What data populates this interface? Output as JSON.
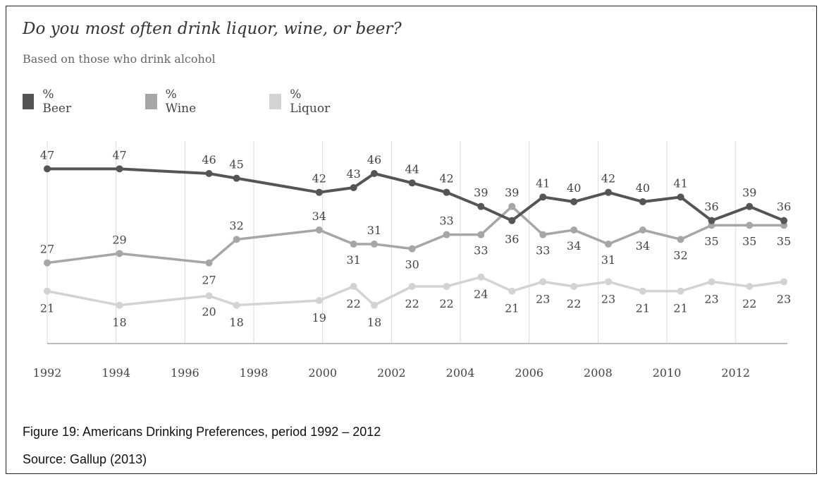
{
  "chart_data": {
    "type": "line",
    "title": "Do you most often drink liquor, wine, or beer?",
    "subtitle": "Based on those who drink alcohol",
    "x_tick_labels": [
      "1992",
      "1994",
      "1996",
      "1998",
      "2000",
      "2002",
      "2004",
      "2006",
      "2008",
      "2010",
      "2012"
    ],
    "xlim": [
      1992,
      2013.5
    ],
    "ylim": [
      10,
      52
    ],
    "grid": "vertical",
    "legend_position": "top-left",
    "x": [
      1992,
      1994.1,
      1996.7,
      1997.5,
      1999.9,
      2000.9,
      2001.5,
      2002.6,
      2003.6,
      2004.6,
      2005.5,
      2006.4,
      2007.3,
      2008.3,
      2009.3,
      2010.4,
      2011.3,
      2012.4,
      2013.4
    ],
    "series": [
      {
        "name": "% Beer",
        "color": "#555555",
        "values": [
          47,
          47,
          46,
          45,
          42,
          43,
          46,
          44,
          42,
          39,
          36,
          41,
          40,
          42,
          40,
          41,
          36,
          39,
          36
        ]
      },
      {
        "name": "% Wine",
        "color": "#a6a6a6",
        "values": [
          27,
          29,
          27,
          32,
          34,
          31,
          31,
          30,
          33,
          33,
          39,
          33,
          34,
          31,
          34,
          32,
          35,
          35,
          35
        ]
      },
      {
        "name": "% Liquor",
        "color": "#d3d3d3",
        "values": [
          21,
          18,
          20,
          18,
          19,
          22,
          18,
          22,
          22,
          24,
          21,
          23,
          22,
          23,
          21,
          21,
          23,
          22,
          23
        ]
      }
    ]
  },
  "caption": {
    "figure": "Figure 19: Americans Drinking Preferences, period 1992 – 2012",
    "source": "Source: Gallup (2013)"
  }
}
